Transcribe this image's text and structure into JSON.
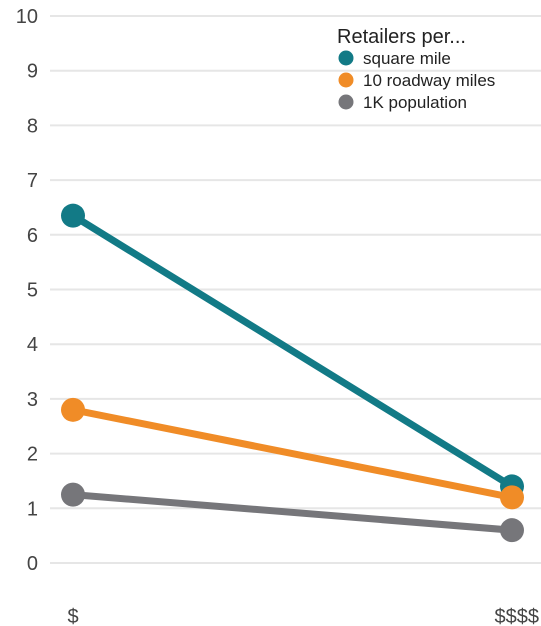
{
  "chart_data": {
    "type": "line",
    "categories": [
      "$",
      "$$$$"
    ],
    "ylim": [
      0,
      10
    ],
    "yticks": [
      0,
      1,
      2,
      3,
      4,
      5,
      6,
      7,
      8,
      9,
      10
    ],
    "grid": true,
    "legend": {
      "title": "Retailers per...",
      "placement": "top-right"
    },
    "series": [
      {
        "name": "square mile",
        "color": "#127a86",
        "values": [
          6.35,
          1.4
        ]
      },
      {
        "name": "10 roadway miles",
        "color": "#f08c27",
        "values": [
          2.8,
          1.2
        ]
      },
      {
        "name": "1K population",
        "color": "#76767a",
        "values": [
          1.25,
          0.6
        ]
      }
    ]
  }
}
